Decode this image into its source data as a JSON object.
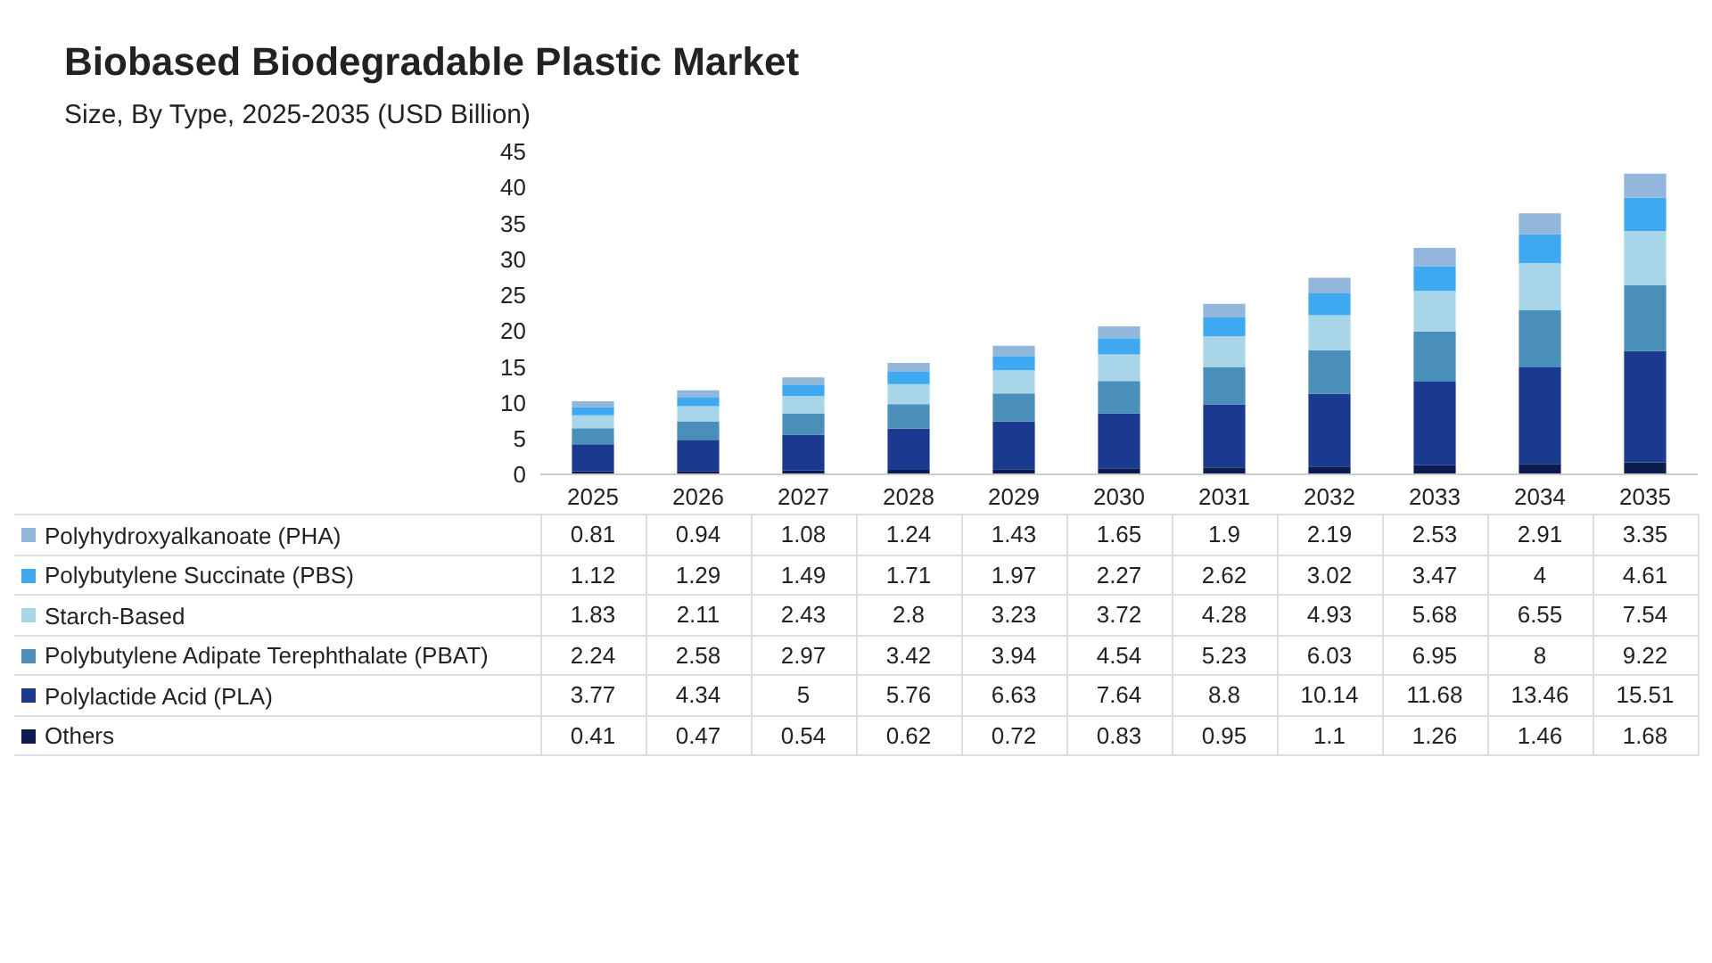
{
  "chart_data": {
    "type": "bar",
    "title": "Biobased Biodegradable Plastic Market",
    "subtitle": "Size, By Type, 2025-2035 (USD Billion)",
    "stacked": true,
    "data_labels": true,
    "legend": "left",
    "grid": false,
    "categories": [
      "2025",
      "2026",
      "2027",
      "2028",
      "2029",
      "2030",
      "2031",
      "2032",
      "2033",
      "2034",
      "2035"
    ],
    "ylim": [
      0,
      45
    ],
    "yticks": [
      0,
      5,
      10,
      15,
      20,
      25,
      30,
      35,
      40,
      45
    ],
    "series": [
      {
        "name": "Others",
        "color": "#0c1c4e",
        "values": [
          0.41,
          0.47,
          0.54,
          0.62,
          0.72,
          0.83,
          0.95,
          1.1,
          1.26,
          1.46,
          1.68
        ]
      },
      {
        "name": "Polylactide Acid (PLA)",
        "color": "#1a3a8f",
        "values": [
          3.77,
          4.34,
          5,
          5.76,
          6.63,
          7.64,
          8.8,
          10.14,
          11.68,
          13.46,
          15.51
        ]
      },
      {
        "name": "Polybutylene Adipate Terephthalate (PBAT)",
        "color": "#4a8fb9",
        "values": [
          2.24,
          2.58,
          2.97,
          3.42,
          3.94,
          4.54,
          5.23,
          6.03,
          6.95,
          8,
          9.22
        ]
      },
      {
        "name": "Starch-Based",
        "color": "#a9d5e8",
        "values": [
          1.83,
          2.11,
          2.43,
          2.8,
          3.23,
          3.72,
          4.28,
          4.93,
          5.68,
          6.55,
          7.54
        ]
      },
      {
        "name": "Polybutylene Succinate (PBS)",
        "color": "#3ea8f0",
        "values": [
          1.12,
          1.29,
          1.49,
          1.71,
          1.97,
          2.27,
          2.62,
          3.02,
          3.47,
          4,
          4.61
        ]
      },
      {
        "name": "Polyhydroxyalkanoate (PHA)",
        "color": "#93b6dd",
        "values": [
          0.81,
          0.94,
          1.08,
          1.24,
          1.43,
          1.65,
          1.9,
          2.19,
          2.53,
          2.91,
          3.35
        ]
      }
    ]
  }
}
